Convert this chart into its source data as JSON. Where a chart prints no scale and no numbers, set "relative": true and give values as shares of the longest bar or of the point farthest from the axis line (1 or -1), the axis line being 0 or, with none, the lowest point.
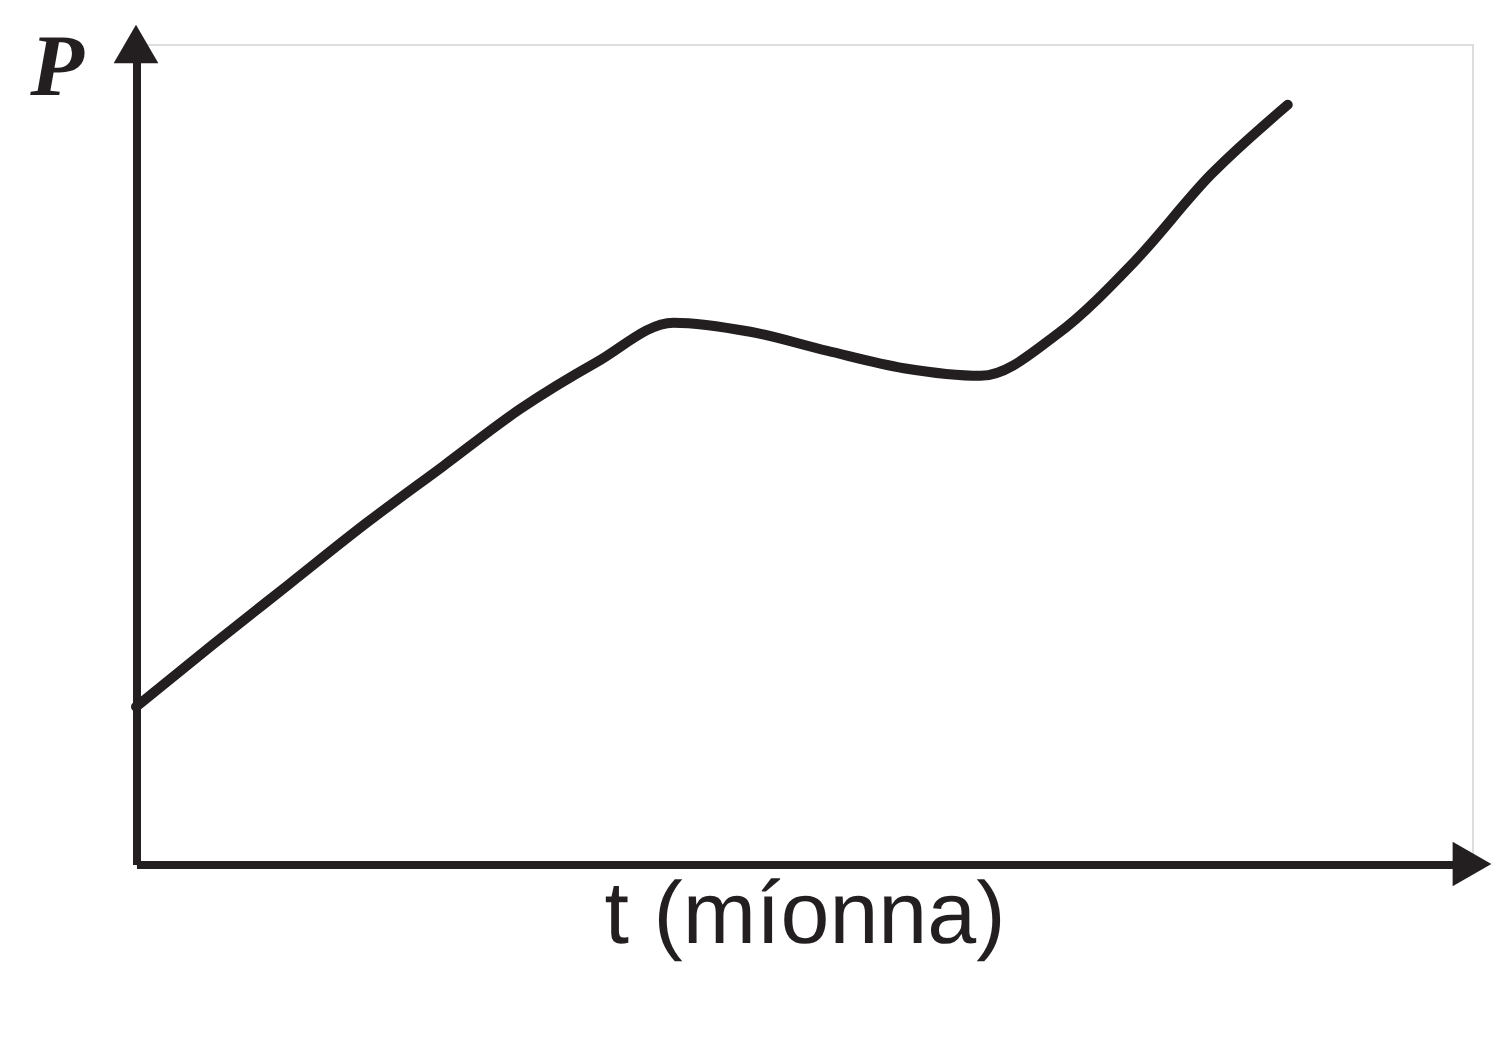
{
  "chart_data": {
    "type": "line",
    "relative": true,
    "xlabel": "t (míonna)",
    "ylabel": "P",
    "color": "#231f20",
    "categories": [
      null,
      null,
      null,
      null,
      null,
      null,
      null,
      null,
      null,
      null,
      null,
      null,
      null,
      null,
      null,
      null
    ],
    "values": [
      0.207,
      0.289,
      0.369,
      0.449,
      0.524,
      0.599,
      0.661,
      0.713,
      0.701,
      0.676,
      0.653,
      0.643,
      0.698,
      0.793,
      0.908,
      1.0
    ]
  }
}
